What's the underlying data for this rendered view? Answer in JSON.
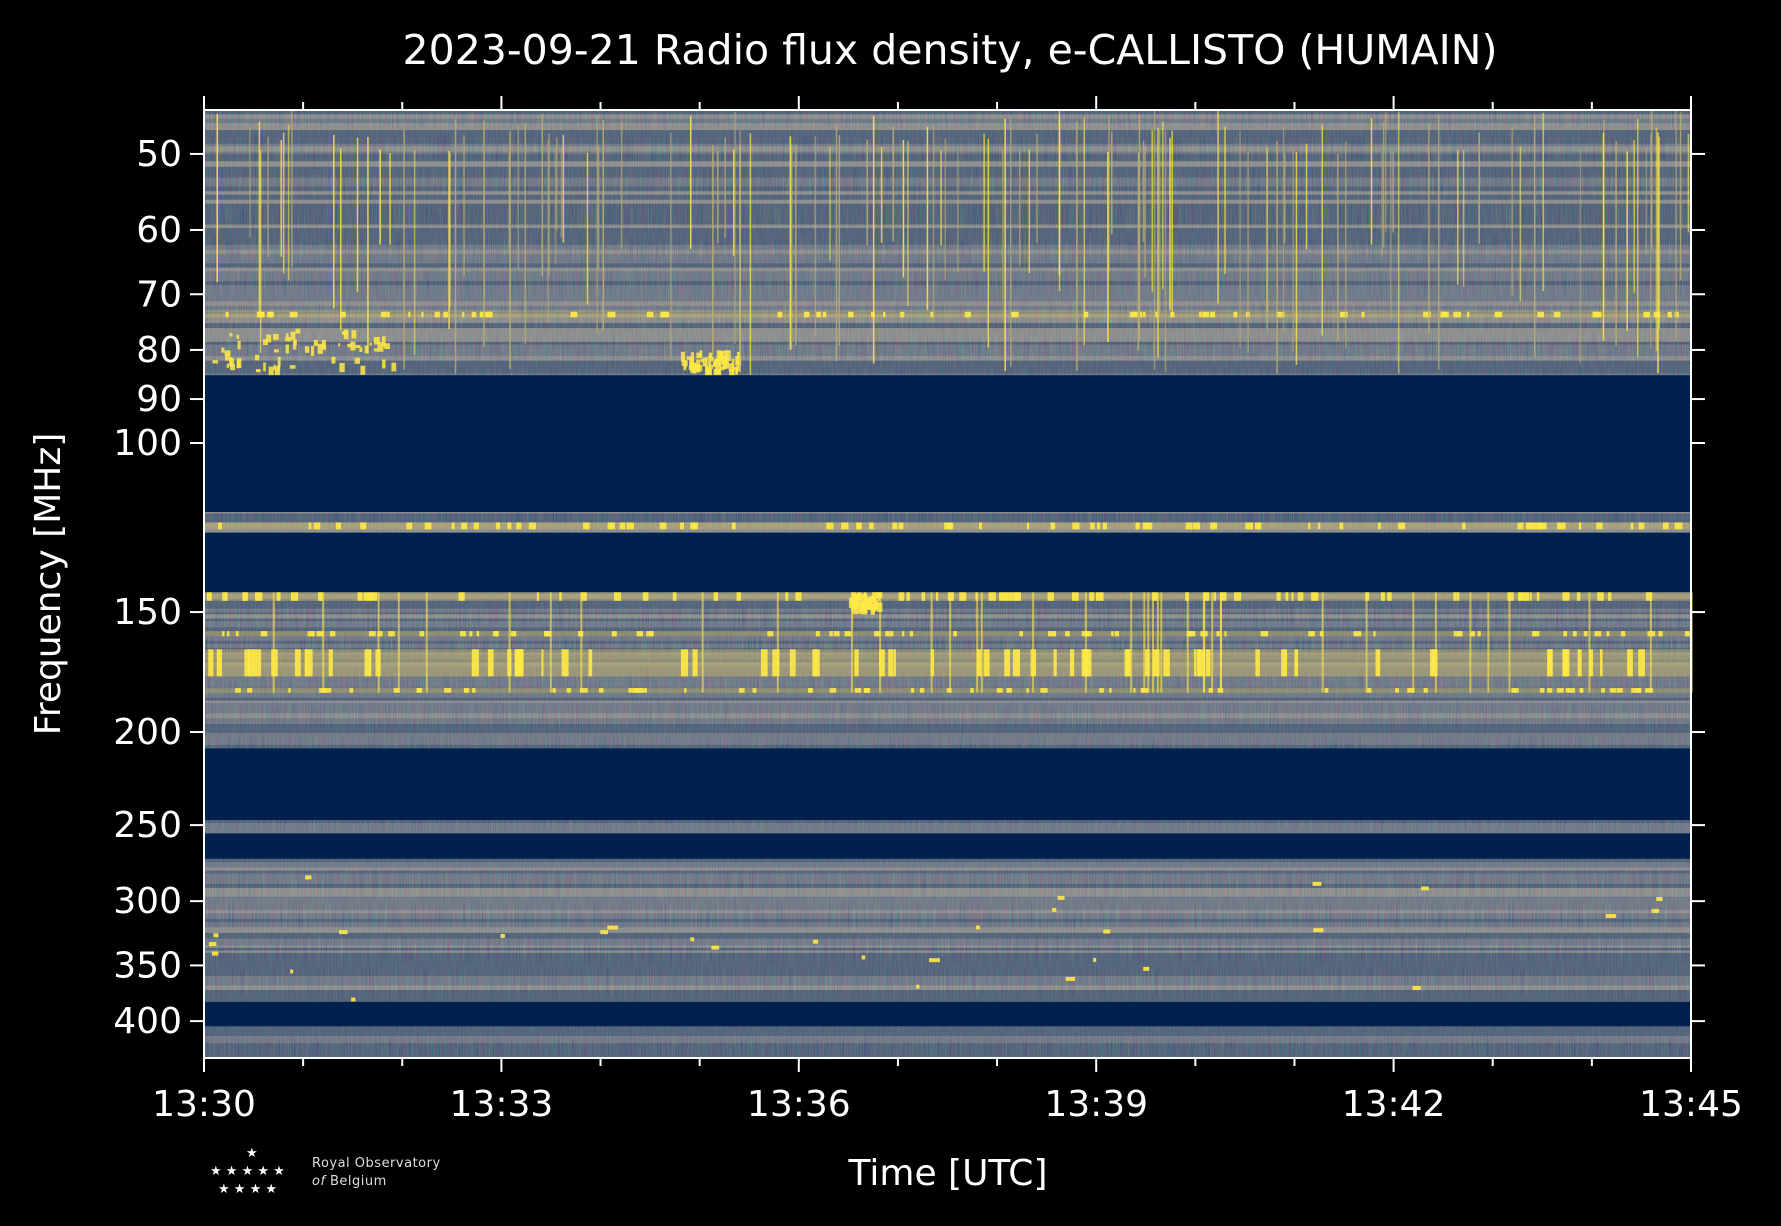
{
  "chart_data": {
    "type": "heatmap",
    "title": "2023-09-21 Radio flux density, e-CALLISTO (HUMAIN)",
    "xlabel": "Time [UTC]",
    "ylabel": "Frequency [MHz]",
    "x_tick_labels": [
      "13:30",
      "13:33",
      "13:36",
      "13:39",
      "13:42",
      "13:45"
    ],
    "x_ticks_minutes": [
      0,
      3,
      6,
      9,
      12,
      15
    ],
    "x_minor_ticks_minutes": [
      1,
      2,
      4,
      5,
      7,
      8,
      10,
      11,
      13,
      14
    ],
    "xlim_minutes": [
      0,
      15
    ],
    "y_scale": "log",
    "y_ticks": [
      50,
      60,
      70,
      80,
      90,
      100,
      150,
      200,
      250,
      300,
      350,
      400
    ],
    "y_tick_labels": [
      "50",
      "60",
      "70",
      "80",
      "90",
      "100",
      "150",
      "200",
      "250",
      "300",
      "350",
      "400"
    ],
    "ylim_mhz": [
      45,
      437
    ],
    "y_inverted": true,
    "colormap": [
      "#00204d",
      "#414d6b",
      "#7c7b78",
      "#bcaf6f",
      "#ffe945"
    ],
    "masked_bands_mhz": [
      [
        85,
        118
      ],
      [
        124,
        143
      ],
      [
        208,
        247
      ],
      [
        255,
        271
      ],
      [
        382,
        405
      ]
    ],
    "bright_bands_mhz": [
      [
        121,
        123
      ],
      [
        143,
        146
      ],
      [
        157,
        159
      ],
      [
        164,
        175
      ],
      [
        180,
        182
      ],
      [
        73,
        74
      ]
    ],
    "burst_regions": [
      {
        "t_minutes": [
          0.0,
          1.9
        ],
        "f_mhz": [
          76,
          84
        ]
      },
      {
        "t_minutes": [
          4.8,
          5.4
        ],
        "f_mhz": [
          80,
          84
        ]
      },
      {
        "t_minutes": [
          6.5,
          6.8
        ],
        "f_mhz": [
          142,
          148
        ]
      }
    ]
  },
  "logo": {
    "line1": "Royal Observatory",
    "line2_italic": "of",
    "line2": "Belgium"
  },
  "colors": {
    "background": "#000000",
    "axis": "#ffffff",
    "masked": "#00204d"
  }
}
